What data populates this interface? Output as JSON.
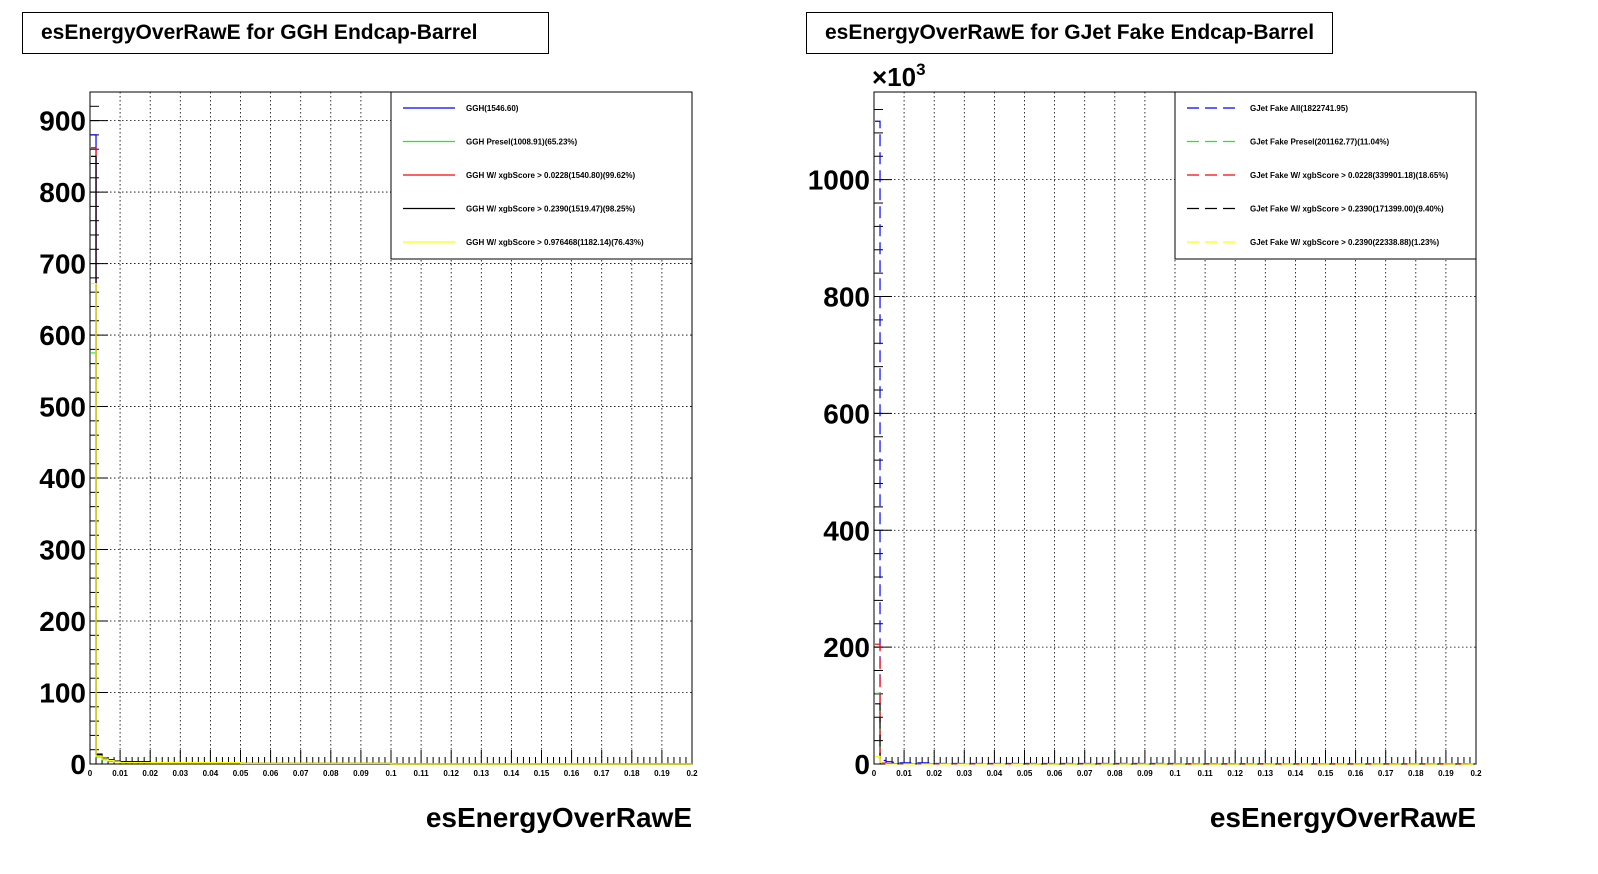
{
  "charts": [
    {
      "title": "esEnergyOverRawE for GGH Endcap-Barrel",
      "xlabel": "esEnergyOverRawE",
      "multiplier": "",
      "chart_data": {
        "type": "line",
        "title": "esEnergyOverRawE for GGH Endcap-Barrel",
        "xlabel": "esEnergyOverRawE",
        "ylabel": "",
        "xlim": [
          0,
          0.2
        ],
        "ylim": [
          0,
          940
        ],
        "x_ticks": [
          "0",
          "0.01",
          "0.02",
          "0.03",
          "0.04",
          "0.05",
          "0.06",
          "0.07",
          "0.08",
          "0.09",
          "0.1",
          "0.11",
          "0.12",
          "0.13",
          "0.14",
          "0.15",
          "0.16",
          "0.17",
          "0.18",
          "0.19",
          "0.2"
        ],
        "y_ticks": [
          "0",
          "100",
          "200",
          "300",
          "400",
          "500",
          "600",
          "700",
          "800",
          "900"
        ],
        "grid": true,
        "legend_position": "top-right",
        "x": [
          0,
          0.002,
          0.004,
          0.006,
          0.008,
          0.01,
          0.02,
          0.05,
          0.1,
          0.2
        ],
        "series": [
          {
            "name": "GGH(1546.60)",
            "color": "#0000ff",
            "dash": "solid",
            "values": [
              880,
              14,
              8,
              6,
              4,
              3,
              2,
              1,
              0,
              0
            ]
          },
          {
            "name": "GGH Presel(1008.91)(65.23%)",
            "color": "#00ff00",
            "dash": "solid",
            "values": [
              575,
              10,
              6,
              4,
              3,
              2,
              1,
              1,
              0,
              0
            ]
          },
          {
            "name": "GGH W/ xgbScore > 0.0228(1540.80)(99.62%)",
            "color": "#ff0000",
            "dash": "solid",
            "values": [
              862,
              13,
              8,
              6,
              4,
              3,
              2,
              1,
              0,
              0
            ]
          },
          {
            "name": "GGH W/ xgbScore > 0.2390(1519.47)(98.25%)",
            "color": "#000000",
            "dash": "solid",
            "values": [
              850,
              13,
              8,
              6,
              4,
              3,
              2,
              1,
              0,
              0
            ]
          },
          {
            "name": "GGH W/ xgbScore > 0.976468(1182.14)(76.43%)",
            "color": "#ffff00",
            "dash": "solid",
            "values": [
              672,
              11,
              7,
              5,
              3,
              2,
              2,
              1,
              0,
              0
            ]
          }
        ]
      }
    },
    {
      "title": "esEnergyOverRawE for GJet Fake Endcap-Barrel",
      "xlabel": "esEnergyOverRawE",
      "multiplier": "×10",
      "multiplier_exp": "3",
      "chart_data": {
        "type": "line",
        "title": "esEnergyOverRawE for GJet Fake Endcap-Barrel",
        "xlabel": "esEnergyOverRawE",
        "ylabel": "",
        "xlim": [
          0,
          0.2
        ],
        "ylim": [
          0,
          1150
        ],
        "y_scale_label": "×10^3",
        "x_ticks": [
          "0",
          "0.01",
          "0.02",
          "0.03",
          "0.04",
          "0.05",
          "0.06",
          "0.07",
          "0.08",
          "0.09",
          "0.1",
          "0.11",
          "0.12",
          "0.13",
          "0.14",
          "0.15",
          "0.16",
          "0.17",
          "0.18",
          "0.19",
          "0.2"
        ],
        "y_ticks": [
          "0",
          "200",
          "400",
          "600",
          "800",
          "1000"
        ],
        "grid": true,
        "legend_position": "top-right",
        "x": [
          0,
          0.002,
          0.004,
          0.006,
          0.008,
          0.01,
          0.02,
          0.05,
          0.1,
          0.13,
          0.2
        ],
        "series": [
          {
            "name": "GJet Fake All(1822741.95)",
            "color": "#0000ff",
            "dash": "dashed",
            "values": [
              1100,
              6,
              4,
              3,
              2,
              2,
              1,
              1,
              0.5,
              0.3,
              0
            ]
          },
          {
            "name": "GJet Fake Presel(201162.77)(11.04%)",
            "color": "#00ff00",
            "dash": "dashed",
            "values": [
              121,
              1,
              0.6,
              0.4,
              0.3,
              0.2,
              0.1,
              0,
              0,
              0,
              0
            ]
          },
          {
            "name": "GJet Fake W/ xgbScore > 0.0228(339901.18)(18.65%)",
            "color": "#ff0000",
            "dash": "dashed",
            "values": [
              205,
              1.5,
              1,
              0.6,
              0.4,
              0.3,
              0.2,
              0.1,
              0,
              0,
              0
            ]
          },
          {
            "name": "GJet Fake W/ xgbScore > 0.2390(171399.00)(9.40%)",
            "color": "#000000",
            "dash": "dashed",
            "values": [
              103,
              1,
              0.6,
              0.4,
              0.3,
              0.2,
              0.1,
              0,
              0,
              0,
              0
            ]
          },
          {
            "name": "GJet Fake W/ xgbScore > 0.2390(22338.88)(1.23%)",
            "color": "#ffff00",
            "dash": "dashed",
            "values": [
              13,
              0.2,
              0.1,
              0.1,
              0,
              0,
              0,
              0,
              0,
              0,
              0
            ]
          }
        ]
      }
    }
  ]
}
